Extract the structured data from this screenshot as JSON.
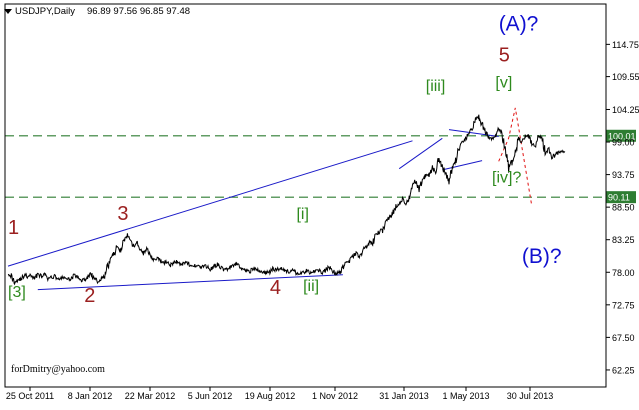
{
  "chart_data": {
    "type": "line",
    "title": "USDJPY,Daily",
    "ohlc": "96.89 97.56 96.85 97.48",
    "watermark": "forDmitry@yahoo.com",
    "ylim": [
      59.5,
      119.0
    ],
    "y_ticks": [
      "114.75",
      "109.55",
      "104.25",
      "99.00",
      "93.75",
      "88.50",
      "83.25",
      "78.00",
      "72.75",
      "67.50",
      "62.25"
    ],
    "x_ticks": [
      "25 Oct 2011",
      "8 Jan 2012",
      "22 Mar 2012",
      "5 Jun 2012",
      "19 Aug 2012",
      "1 Nov 2012",
      "31 Jan 2013",
      "1 May 2013",
      "30 Jul 2013"
    ],
    "levels": [
      {
        "value": 100.01,
        "label": "100.01"
      },
      {
        "value": 90.11,
        "label": "90.11"
      }
    ],
    "colors": {
      "price": "#000000",
      "trendline": "#1a1ac8",
      "level": "#2e7d32",
      "forecast": "#e01010",
      "wave_major": "#9b2020",
      "wave_minor": "#2e8a1e",
      "wave_cycle": "#1010d0"
    },
    "series": [
      {
        "values": [
          78.0,
          77.4,
          76.4,
          76.8,
          76.9,
          77.6,
          77.2,
          77.5,
          77.0,
          77.8,
          77.3,
          77.6,
          76.9,
          77.1,
          77.4,
          77.0,
          76.9,
          77.3,
          76.8,
          77.0,
          77.5,
          77.1,
          76.7,
          76.8,
          77.2,
          77.8,
          76.9,
          76.6,
          76.9,
          77.2,
          78.8,
          80.2,
          81.0,
          82.2,
          81.6,
          83.2,
          83.8,
          82.8,
          82.2,
          82.7,
          81.6,
          81.0,
          81.8,
          80.8,
          80.1,
          80.2,
          79.8,
          79.5,
          79.8,
          79.1,
          79.5,
          79.8,
          79.2,
          79.5,
          79.8,
          78.9,
          79.0,
          79.2,
          78.8,
          79.0,
          78.9,
          78.5,
          78.8,
          79.3,
          78.9,
          78.4,
          78.5,
          78.8,
          79.0,
          79.4,
          78.7,
          78.5,
          78.3,
          78.2,
          78.6,
          78.4,
          78.2,
          78.0,
          77.9,
          78.1,
          78.6,
          78.3,
          78.8,
          78.5,
          78.2,
          78.0,
          78.3,
          77.9,
          77.7,
          77.9,
          78.3,
          77.9,
          78.0,
          78.3,
          78.3,
          77.9,
          78.5,
          78.8,
          78.2,
          77.7,
          78.0,
          78.8,
          79.8,
          79.8,
          80.5,
          81.0,
          80.5,
          81.5,
          82.1,
          82.8,
          82.7,
          84.1,
          84.5,
          84.9,
          86.3,
          86.8,
          87.4,
          88.7,
          89.0,
          89.7,
          89.1,
          90.0,
          91.6,
          92.8,
          91.5,
          92.8,
          93.6,
          93.7,
          94.9,
          94.3,
          96.5,
          95.0,
          93.8,
          92.9,
          94.9,
          96.0,
          98.0,
          98.9,
          99.4,
          100.5,
          101.0,
          102.8,
          103.1,
          101.8,
          100.8,
          99.7,
          99.6,
          99.6,
          101.0,
          100.4,
          97.5,
          94.6,
          95.8,
          97.4,
          99.8,
          98.6,
          99.9,
          100.2,
          98.6,
          98.5,
          99.8,
          99.7,
          97.3,
          98.0,
          96.5,
          96.9,
          97.3,
          97.4,
          97.48
        ]
      }
    ],
    "wave_labels": [
      {
        "text": "1",
        "cls": "major",
        "x": 0,
        "y": 84.2
      },
      {
        "text": "[3]",
        "cls": "minor",
        "x": 0,
        "y": 74.0
      },
      {
        "text": "2",
        "cls": "major",
        "x": 23,
        "y": 73.2
      },
      {
        "text": "3",
        "cls": "major",
        "x": 33,
        "y": 86.4
      },
      {
        "text": "4",
        "cls": "major",
        "x": 79,
        "y": 74.5
      },
      {
        "text": "[ii]",
        "cls": "minor",
        "x": 89,
        "y": 75.0
      },
      {
        "text": "[i]",
        "cls": "minor",
        "x": 87,
        "y": 86.6
      },
      {
        "text": "[iii]",
        "cls": "minor",
        "x": 126,
        "y": 107.2
      },
      {
        "text": "5",
        "cls": "major",
        "x": 148,
        "y": 112.0
      },
      {
        "text": "[v]",
        "cls": "minor",
        "x": 147,
        "y": 107.8
      },
      {
        "text": "[iv]?",
        "cls": "minor",
        "x": 146,
        "y": 92.5
      },
      {
        "text": "(A)?",
        "cls": "cycle",
        "x": 148,
        "y": 117.0
      },
      {
        "text": "(B)?",
        "cls": "cycle",
        "x": 155,
        "y": 79.5
      }
    ],
    "trendlines": [
      {
        "kind": "solid",
        "points": [
          [
            0,
            79.0
          ],
          [
            122,
            99.2
          ]
        ]
      },
      {
        "kind": "solid",
        "points": [
          [
            9,
            75.2
          ],
          [
            101,
            77.6
          ]
        ]
      },
      {
        "kind": "solid",
        "points": [
          [
            133,
            101.0
          ],
          [
            148,
            99.9
          ]
        ]
      },
      {
        "kind": "solid",
        "points": [
          [
            131,
            94.5
          ],
          [
            143,
            96.0
          ]
        ]
      },
      {
        "kind": "solid",
        "points": [
          [
            118,
            94.7
          ],
          [
            131,
            99.6
          ]
        ]
      },
      {
        "kind": "dashed",
        "points": [
          [
            148,
            95.9
          ],
          [
            151,
            99.6
          ],
          [
            153,
            104.5
          ],
          [
            158,
            88.7
          ]
        ]
      }
    ]
  }
}
